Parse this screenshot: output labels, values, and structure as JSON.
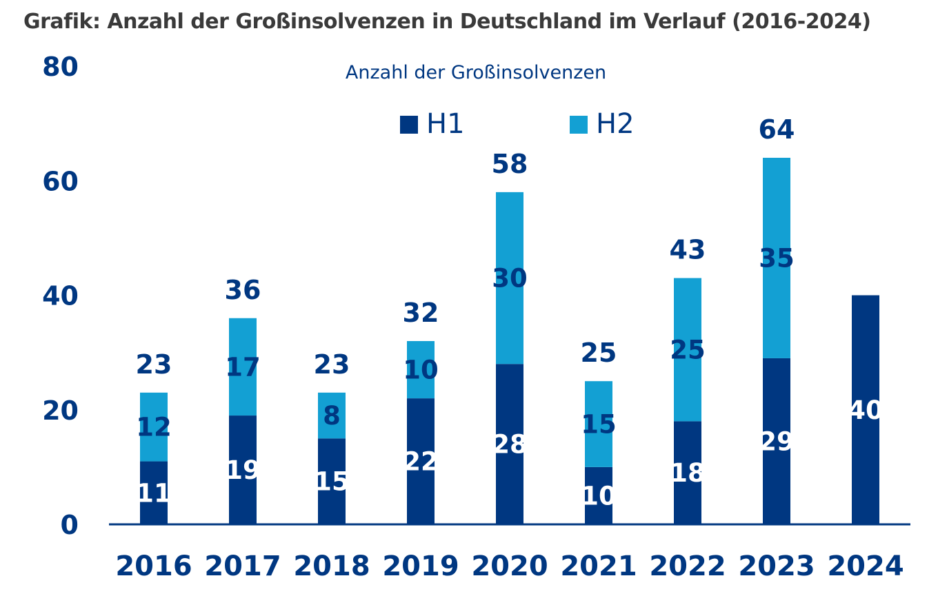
{
  "title": "Grafik: Anzahl der Großinsolvenzen in Deutschland im Verlauf (2016-2024)",
  "colors": {
    "h1": "#003781",
    "h2": "#13a0d3",
    "text": "#003781",
    "title": "#3a3a3a"
  },
  "chart_data": {
    "type": "bar",
    "stacked": true,
    "subtitle": "Anzahl der Großinsolvenzen",
    "categories": [
      "2016",
      "2017",
      "2018",
      "2019",
      "2020",
      "2021",
      "2022",
      "2023",
      "2024"
    ],
    "series": [
      {
        "name": "H1",
        "values": [
          11,
          19,
          15,
          22,
          28,
          10,
          18,
          29,
          40
        ]
      },
      {
        "name": "H2",
        "values": [
          12,
          17,
          8,
          10,
          30,
          15,
          25,
          35,
          null
        ]
      }
    ],
    "totals": [
      23,
      36,
      23,
      32,
      58,
      25,
      43,
      64,
      null
    ],
    "yticks": [
      "0",
      "20",
      "40",
      "60",
      "80"
    ],
    "ylim": [
      0,
      80
    ],
    "grid": false,
    "legend": "top-center"
  }
}
